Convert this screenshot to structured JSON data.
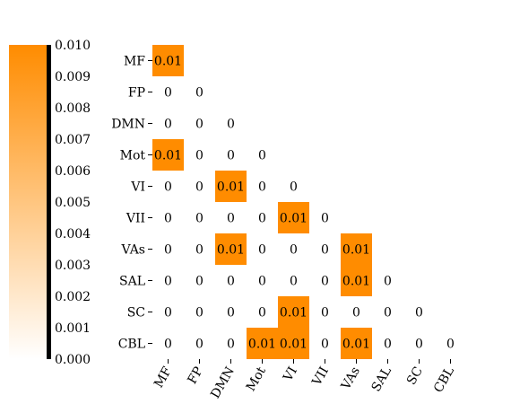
{
  "chart_data": {
    "type": "heatmap",
    "title": "",
    "xlabel": "",
    "ylabel": "",
    "row_labels": [
      "MF",
      "FP",
      "DMN",
      "Mot",
      "VI",
      "VII",
      "VAs",
      "SAL",
      "SC",
      "CBL"
    ],
    "col_labels": [
      "MF",
      "FP",
      "DMN",
      "Mot",
      "VI",
      "VII",
      "VAs",
      "SAL",
      "SC",
      "CBL"
    ],
    "mask": "upper-triangle-above-diagonal",
    "values": [
      [
        0.01
      ],
      [
        0,
        0
      ],
      [
        0,
        0,
        0
      ],
      [
        0.01,
        0,
        0,
        0
      ],
      [
        0,
        0,
        0.01,
        0,
        0
      ],
      [
        0,
        0,
        0,
        0,
        0.01,
        0
      ],
      [
        0,
        0,
        0.01,
        0,
        0,
        0,
        0.01
      ],
      [
        0,
        0,
        0,
        0,
        0,
        0,
        0.01,
        0
      ],
      [
        0,
        0,
        0,
        0,
        0.01,
        0,
        0,
        0,
        0
      ],
      [
        0,
        0,
        0,
        0.01,
        0.01,
        0,
        0.01,
        0,
        0,
        0
      ]
    ],
    "cell_labels": [
      [
        "0.01"
      ],
      [
        "0",
        "0"
      ],
      [
        "0",
        "0",
        "0"
      ],
      [
        "0.01",
        "0",
        "0",
        "0"
      ],
      [
        "0",
        "0",
        "0.01",
        "0",
        "0"
      ],
      [
        "0",
        "0",
        "0",
        "0",
        "0.01",
        "0"
      ],
      [
        "0",
        "0",
        "0.01",
        "0",
        "0",
        "0",
        "0.01"
      ],
      [
        "0",
        "0",
        "0",
        "0",
        "0",
        "0",
        "0.01",
        "0"
      ],
      [
        "0",
        "0",
        "0",
        "0",
        "0.01",
        "0",
        "0",
        "0",
        "0"
      ],
      [
        "0",
        "0",
        "0",
        "0.01",
        "0.01",
        "0",
        "0.01",
        "0",
        "0",
        "0"
      ]
    ],
    "colorbar": {
      "range": [
        0,
        0.01
      ],
      "ticks": [
        "0.000",
        "0.001",
        "0.002",
        "0.003",
        "0.004",
        "0.005",
        "0.006",
        "0.007",
        "0.008",
        "0.009",
        "0.010"
      ],
      "placement": "left",
      "color_low": "#ffffff",
      "color_high": "#ff8c00"
    },
    "grid": false,
    "legend": "none"
  }
}
